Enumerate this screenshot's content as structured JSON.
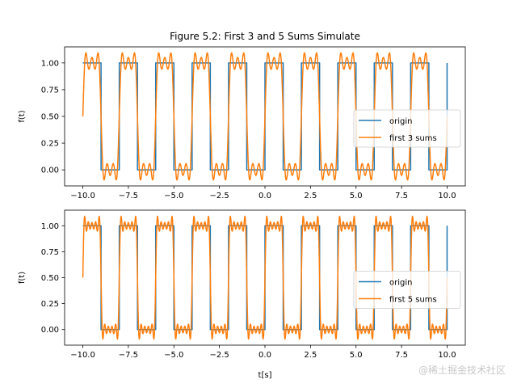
{
  "figure_title": "Figure 5.2: First 3 and 5 Sums Simulate",
  "watermark": "@稀土掘金技术社区",
  "colors": {
    "origin": "#1f77b4",
    "approx": "#ff7f0e",
    "axis": "#000000",
    "background": "#ffffff"
  },
  "chart_data": [
    {
      "type": "line",
      "title": "Figure 5.2: First 3 and 5 Sums Simulate",
      "xlabel": "",
      "ylabel": "f(t)",
      "xlim": [
        -11,
        11
      ],
      "ylim": [
        -0.15,
        1.15
      ],
      "xticks": [
        -10.0,
        -7.5,
        -5.0,
        -2.5,
        0.0,
        2.5,
        5.0,
        7.5,
        10.0
      ],
      "xtick_labels": [
        "−10.0",
        "−7.5",
        "−5.0",
        "−2.5",
        "0.0",
        "2.5",
        "5.0",
        "7.5",
        "10.0"
      ],
      "yticks": [
        0.0,
        0.25,
        0.5,
        0.75,
        1.0
      ],
      "ytick_labels": [
        "0.00",
        "0.25",
        "0.50",
        "0.75",
        "1.00"
      ],
      "grid": false,
      "legend_position": "center-right",
      "series": [
        {
          "name": "origin",
          "kind": "square_wave",
          "period": 2,
          "amplitude": 1,
          "x_range": [
            -10,
            10
          ]
        },
        {
          "name": "first 3 sums",
          "kind": "fourier_partial_sum",
          "harmonics": [
            1,
            3,
            5
          ],
          "period": 2,
          "x_range": [
            -10,
            10
          ]
        }
      ]
    },
    {
      "type": "line",
      "title": "",
      "xlabel": "t[s]",
      "ylabel": "f(t)",
      "xlim": [
        -11,
        11
      ],
      "ylim": [
        -0.15,
        1.15
      ],
      "xticks": [
        -10.0,
        -7.5,
        -5.0,
        -2.5,
        0.0,
        2.5,
        5.0,
        7.5,
        10.0
      ],
      "xtick_labels": [
        "−10.0",
        "−7.5",
        "−5.0",
        "−2.5",
        "0.0",
        "2.5",
        "5.0",
        "7.5",
        "10.0"
      ],
      "yticks": [
        0.0,
        0.25,
        0.5,
        0.75,
        1.0
      ],
      "ytick_labels": [
        "0.00",
        "0.25",
        "0.50",
        "0.75",
        "1.00"
      ],
      "grid": false,
      "legend_position": "center-right",
      "series": [
        {
          "name": "origin",
          "kind": "square_wave",
          "period": 2,
          "amplitude": 1,
          "x_range": [
            -10,
            10
          ]
        },
        {
          "name": "first 5 sums",
          "kind": "fourier_partial_sum",
          "harmonics": [
            1,
            3,
            5,
            7,
            9
          ],
          "period": 2,
          "x_range": [
            -10,
            10
          ]
        }
      ]
    }
  ]
}
